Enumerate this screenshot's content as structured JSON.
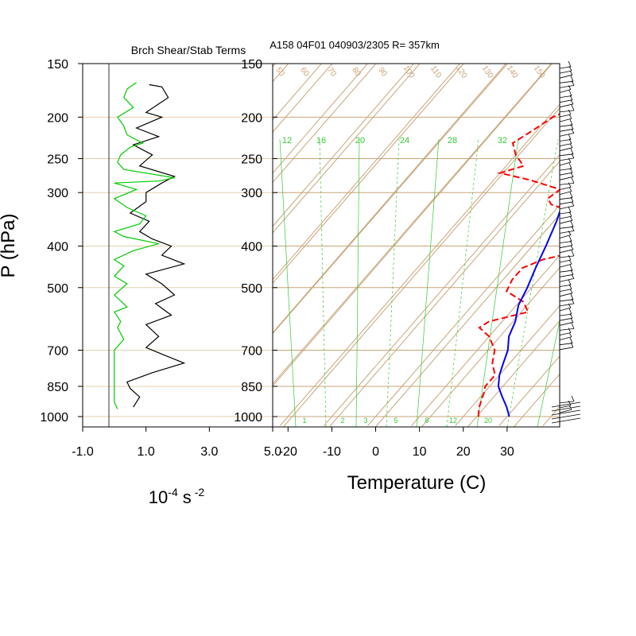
{
  "chart_data": [
    {
      "type": "line",
      "title": "Brch Shear/Stab Terms",
      "ylabel": "P (hPa)",
      "xlabel_base": "10",
      "xlabel_exp": "-4",
      "xlabel_unit": "s",
      "xlabel_unit_exp": "-2",
      "x_ticks": [
        "-1.0",
        "1.0",
        "3.0",
        "5.0"
      ],
      "x_tick_values": [
        -1,
        1,
        3,
        5
      ],
      "y_ticks": [
        "150",
        "200",
        "250",
        "300",
        "400",
        "500",
        "700",
        "850",
        "1000"
      ],
      "y_tick_values": [
        150,
        200,
        250,
        300,
        400,
        500,
        700,
        850,
        1000
      ],
      "xlim": [
        -1,
        5
      ],
      "ylim": [
        1050,
        150
      ],
      "y_scale": "log",
      "series": [
        {
          "color": "#000000",
          "points": [
            [
              0.6,
              950
            ],
            [
              0.8,
              900
            ],
            [
              0.5,
              860
            ],
            [
              0.4,
              830
            ],
            [
              1.2,
              790
            ],
            [
              2.2,
              750
            ],
            [
              1.6,
              720
            ],
            [
              1.0,
              690
            ],
            [
              1.4,
              650
            ],
            [
              1.0,
              610
            ],
            [
              1.8,
              580
            ],
            [
              1.3,
              545
            ],
            [
              1.9,
              520
            ],
            [
              1.5,
              490
            ],
            [
              1.0,
              465
            ],
            [
              2.2,
              440
            ],
            [
              1.5,
              420
            ],
            [
              1.8,
              400
            ],
            [
              1.2,
              385
            ],
            [
              0.8,
              370
            ],
            [
              1.1,
              350
            ],
            [
              0.5,
              335
            ],
            [
              1.0,
              315
            ],
            [
              1.0,
              300
            ],
            [
              1.5,
              285
            ],
            [
              1.9,
              275
            ],
            [
              0.8,
              260
            ],
            [
              1.2,
              245
            ],
            [
              0.6,
              232
            ],
            [
              1.4,
              222
            ],
            [
              0.7,
              212
            ],
            [
              1.5,
              200
            ],
            [
              1.0,
              195
            ],
            [
              1.7,
              180
            ],
            [
              1.5,
              170
            ],
            [
              1.1,
              168
            ]
          ]
        },
        {
          "color": "#00cc00",
          "points": [
            [
              0.1,
              960
            ],
            [
              0.0,
              925
            ],
            [
              0.0,
              700
            ],
            [
              0.3,
              660
            ],
            [
              0.1,
              620
            ],
            [
              0.2,
              600
            ],
            [
              0.0,
              570
            ],
            [
              0.4,
              555
            ],
            [
              0.0,
              520
            ],
            [
              0.4,
              490
            ],
            [
              0.0,
              470
            ],
            [
              0.3,
              445
            ],
            [
              0.0,
              430
            ],
            [
              0.6,
              410
            ],
            [
              1.4,
              395
            ],
            [
              0.3,
              380
            ],
            [
              0.0,
              370
            ],
            [
              0.8,
              355
            ],
            [
              1.0,
              340
            ],
            [
              0.4,
              325
            ],
            [
              0.0,
              310
            ],
            [
              0.7,
              295
            ],
            [
              0.0,
              285
            ],
            [
              1.4,
              282
            ],
            [
              1.9,
              277
            ],
            [
              0.3,
              265
            ],
            [
              0.1,
              255
            ],
            [
              0.2,
              245
            ],
            [
              0.5,
              235
            ],
            [
              0.9,
              230
            ],
            [
              0.4,
              220
            ],
            [
              0.3,
              210
            ],
            [
              0.1,
              200
            ],
            [
              0.6,
              190
            ],
            [
              0.3,
              180
            ],
            [
              0.4,
              172
            ],
            [
              0.7,
              166
            ]
          ]
        }
      ]
    },
    {
      "type": "line",
      "title": "A158 04F01 040903/2305 R= 357km",
      "xlabel": "Temperature (C)",
      "x_ticks": [
        "-20",
        "-10",
        "0",
        "10",
        "20",
        "30"
      ],
      "x_tick_values": [
        -20,
        -10,
        0,
        10,
        20,
        30
      ],
      "y_ticks": [
        "150",
        "200",
        "250",
        "300",
        "400",
        "500",
        "700",
        "850",
        "1000"
      ],
      "y_tick_values": [
        150,
        200,
        250,
        300,
        400,
        500,
        700,
        850,
        1000
      ],
      "xlim": [
        -23.5,
        42
      ],
      "ylim": [
        1050,
        150
      ],
      "y_scale": "log",
      "mixing_ratio_labels_top": [
        "12",
        "16",
        "20",
        "24",
        "28",
        "32"
      ],
      "mixing_ratio_labels_bottom": [
        "1",
        "2",
        "3",
        "5",
        "8",
        "12",
        "20"
      ],
      "dry_adiabat_labels": [
        "50",
        "60",
        "70",
        "80",
        "90",
        "100",
        "110",
        "120",
        "130",
        "140",
        "150"
      ],
      "colors": {
        "temperature": "#0000ff",
        "dewpoint": "#ff0000",
        "skewt_grid": "#c8a478",
        "mixing_ratio": "#33cc33"
      },
      "temperature": [
        [
          30.5,
          1000
        ],
        [
          28,
          950
        ],
        [
          25,
          900
        ],
        [
          22,
          850
        ],
        [
          20,
          800
        ],
        [
          18.5,
          750
        ],
        [
          17,
          700
        ],
        [
          14.5,
          650
        ],
        [
          13,
          600
        ],
        [
          10.5,
          550
        ],
        [
          9,
          500
        ],
        [
          7,
          450
        ],
        [
          5,
          400
        ],
        [
          2.5,
          350
        ],
        [
          -1,
          300
        ],
        [
          -4.5,
          270
        ],
        [
          -8,
          250
        ],
        [
          -12,
          225
        ],
        [
          -16,
          200
        ],
        [
          -20,
          185
        ],
        [
          -22,
          175
        ]
      ],
      "dewpoint": [
        [
          23.5,
          1000
        ],
        [
          22,
          960
        ],
        [
          21,
          920
        ],
        [
          20,
          880
        ],
        [
          19,
          850
        ],
        [
          19,
          800
        ],
        [
          16,
          750
        ],
        [
          14,
          700
        ],
        [
          10,
          650
        ],
        [
          6,
          620
        ],
        [
          7,
          600
        ],
        [
          14,
          570
        ],
        [
          11,
          540
        ],
        [
          5,
          510
        ],
        [
          4,
          480
        ],
        [
          4,
          450
        ],
        [
          7,
          430
        ],
        [
          14,
          410
        ],
        [
          8,
          390
        ],
        [
          11,
          370
        ],
        [
          10,
          345
        ],
        [
          3,
          330
        ],
        [
          -2,
          320
        ],
        [
          -4,
          310
        ],
        [
          -3,
          295
        ],
        [
          -12,
          280
        ],
        [
          -20,
          270
        ],
        [
          -16,
          260
        ],
        [
          -20,
          245
        ],
        [
          -23,
          230
        ],
        [
          -21,
          215
        ],
        [
          -19,
          200
        ],
        [
          -16,
          190
        ]
      ],
      "wind_barbs": true
    }
  ]
}
